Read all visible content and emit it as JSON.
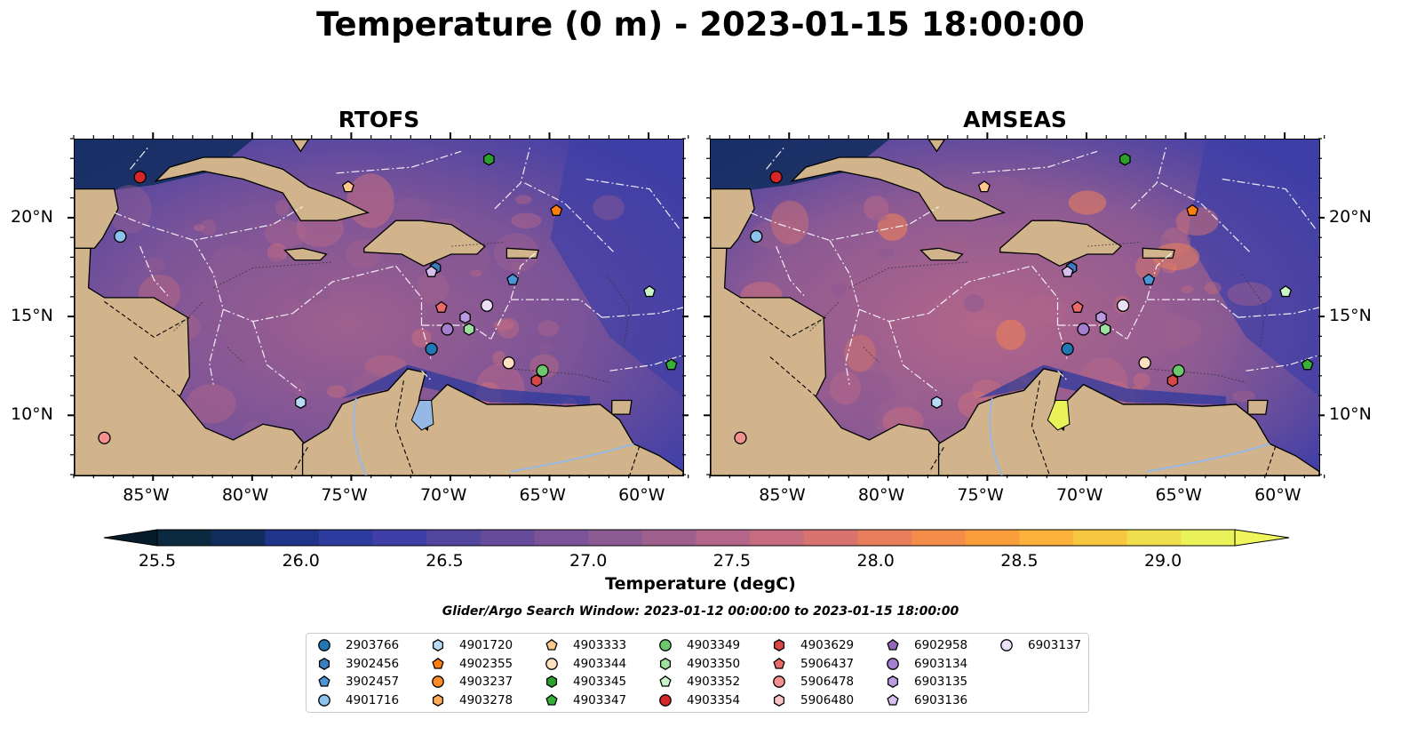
{
  "title": "Temperature (0 m) - 2023-01-15 18:00:00",
  "panels": [
    {
      "title": "RTOFS"
    },
    {
      "title": "AMSEAS"
    }
  ],
  "lon_ticks": [
    "85°W",
    "80°W",
    "75°W",
    "70°W",
    "65°W",
    "60°W"
  ],
  "lat_ticks": [
    "20°N",
    "15°N",
    "10°N"
  ],
  "colorbar": {
    "label": "Temperature (degC)",
    "ticks": [
      "25.5",
      "26.0",
      "26.5",
      "27.0",
      "27.5",
      "28.0",
      "28.5",
      "29.0"
    ],
    "range": [
      25.5,
      29.25
    ],
    "colors": [
      "#0c2a3f",
      "#112d5c",
      "#1f3589",
      "#2d3a9e",
      "#3f3fa7",
      "#53469f",
      "#664c9a",
      "#7a5398",
      "#8c5a93",
      "#9f608e",
      "#b36689",
      "#c56d7f",
      "#d87470",
      "#e87e5c",
      "#f48c4a",
      "#f99e3a",
      "#fbb13a",
      "#f6c73f",
      "#f0df4c",
      "#eaf25a"
    ],
    "under_color": "#071c2b",
    "over_color": "#eff55a"
  },
  "search_window": "Glider/Argo Search Window: 2023-01-12 00:00:00 to 2023-01-15 18:00:00",
  "legend": [
    {
      "id": "2903766",
      "marker": "circle",
      "color": "#1f77b4"
    },
    {
      "id": "3902456",
      "marker": "hexagon",
      "color": "#3a7dc0"
    },
    {
      "id": "3902457",
      "marker": "pentagon",
      "color": "#4a96d6"
    },
    {
      "id": "4901716",
      "marker": "circle",
      "color": "#8cc2ec"
    },
    {
      "id": "4901720",
      "marker": "hexagon",
      "color": "#b8dbf5"
    },
    {
      "id": "4902355",
      "marker": "pentagon",
      "color": "#ff7f0e"
    },
    {
      "id": "4903237",
      "marker": "circle",
      "color": "#ff8c28"
    },
    {
      "id": "4903278",
      "marker": "hexagon",
      "color": "#ffaa55"
    },
    {
      "id": "4903333",
      "marker": "pentagon",
      "color": "#ffc88c"
    },
    {
      "id": "4903344",
      "marker": "circle",
      "color": "#ffe0c0"
    },
    {
      "id": "4903345",
      "marker": "hexagon",
      "color": "#2ca02c"
    },
    {
      "id": "4903347",
      "marker": "pentagon",
      "color": "#36b036"
    },
    {
      "id": "4903349",
      "marker": "circle",
      "color": "#6cc86c"
    },
    {
      "id": "4903350",
      "marker": "hexagon",
      "color": "#9ee09e"
    },
    {
      "id": "4903352",
      "marker": "pentagon",
      "color": "#c8f5c8"
    },
    {
      "id": "4903354",
      "marker": "circle",
      "color": "#d62728"
    },
    {
      "id": "4903629",
      "marker": "hexagon",
      "color": "#d84646"
    },
    {
      "id": "5906437",
      "marker": "pentagon",
      "color": "#ec6a6a"
    },
    {
      "id": "5906478",
      "marker": "circle",
      "color": "#f59090"
    },
    {
      "id": "5906480",
      "marker": "hexagon",
      "color": "#fbc4c4"
    },
    {
      "id": "6902958",
      "marker": "pentagon",
      "color": "#9467bd"
    },
    {
      "id": "6903134",
      "marker": "circle",
      "color": "#a47fd0"
    },
    {
      "id": "6903135",
      "marker": "hexagon",
      "color": "#bc9ae0"
    },
    {
      "id": "6903136",
      "marker": "pentagon",
      "color": "#d6c0f0"
    },
    {
      "id": "6903137",
      "marker": "circle",
      "color": "#ecdff8"
    }
  ],
  "floats": [
    {
      "id": "4903354",
      "lon": -85.7,
      "lat": 22.1,
      "marker": "circle",
      "color": "#d62728"
    },
    {
      "id": "4901716",
      "lon": -86.7,
      "lat": 19.1,
      "marker": "circle",
      "color": "#8cc2ec"
    },
    {
      "id": "4903333",
      "lon": -75.2,
      "lat": 21.6,
      "marker": "pentagon",
      "color": "#ffc88c"
    },
    {
      "id": "4903345",
      "lon": -68.1,
      "lat": 23.0,
      "marker": "hexagon",
      "color": "#2ca02c"
    },
    {
      "id": "4902355",
      "lon": -64.7,
      "lat": 20.4,
      "marker": "pentagon",
      "color": "#ff7f0e"
    },
    {
      "id": "3902456",
      "lon": -70.8,
      "lat": 17.5,
      "marker": "hexagon",
      "color": "#3a7dc0"
    },
    {
      "id": "6903136",
      "lon": -71.0,
      "lat": 17.3,
      "marker": "pentagon",
      "color": "#d6c0f0"
    },
    {
      "id": "3902457",
      "lon": -66.9,
      "lat": 16.9,
      "marker": "pentagon",
      "color": "#4a96d6"
    },
    {
      "id": "4903352",
      "lon": -60.0,
      "lat": 16.3,
      "marker": "pentagon",
      "color": "#c8f5c8"
    },
    {
      "id": "5906437",
      "lon": -70.5,
      "lat": 15.5,
      "marker": "pentagon",
      "color": "#ec6a6a"
    },
    {
      "id": "6903137",
      "lon": -68.2,
      "lat": 15.6,
      "marker": "circle",
      "color": "#ecdff8"
    },
    {
      "id": "6903135",
      "lon": -69.3,
      "lat": 15.0,
      "marker": "hexagon",
      "color": "#bc9ae0"
    },
    {
      "id": "6903134",
      "lon": -70.2,
      "lat": 14.4,
      "marker": "circle",
      "color": "#a47fd0"
    },
    {
      "id": "4903350",
      "lon": -69.1,
      "lat": 14.4,
      "marker": "hexagon",
      "color": "#9ee09e"
    },
    {
      "id": "2903766",
      "lon": -71.0,
      "lat": 13.4,
      "marker": "circle",
      "color": "#1f77b4"
    },
    {
      "id": "4903344",
      "lon": -67.1,
      "lat": 12.7,
      "marker": "circle",
      "color": "#ffe0c0"
    },
    {
      "id": "4903349",
      "lon": -65.4,
      "lat": 12.3,
      "marker": "circle",
      "color": "#6cc86c"
    },
    {
      "id": "4903347",
      "lon": -58.9,
      "lat": 12.6,
      "marker": "pentagon",
      "color": "#36b036"
    },
    {
      "id": "4903629",
      "lon": -65.7,
      "lat": 11.8,
      "marker": "hexagon",
      "color": "#d84646"
    },
    {
      "id": "4901720",
      "lon": -77.6,
      "lat": 10.7,
      "marker": "hexagon",
      "color": "#b8dbf5"
    },
    {
      "id": "5906478",
      "lon": -87.5,
      "lat": 8.9,
      "marker": "circle",
      "color": "#f59090"
    }
  ]
}
